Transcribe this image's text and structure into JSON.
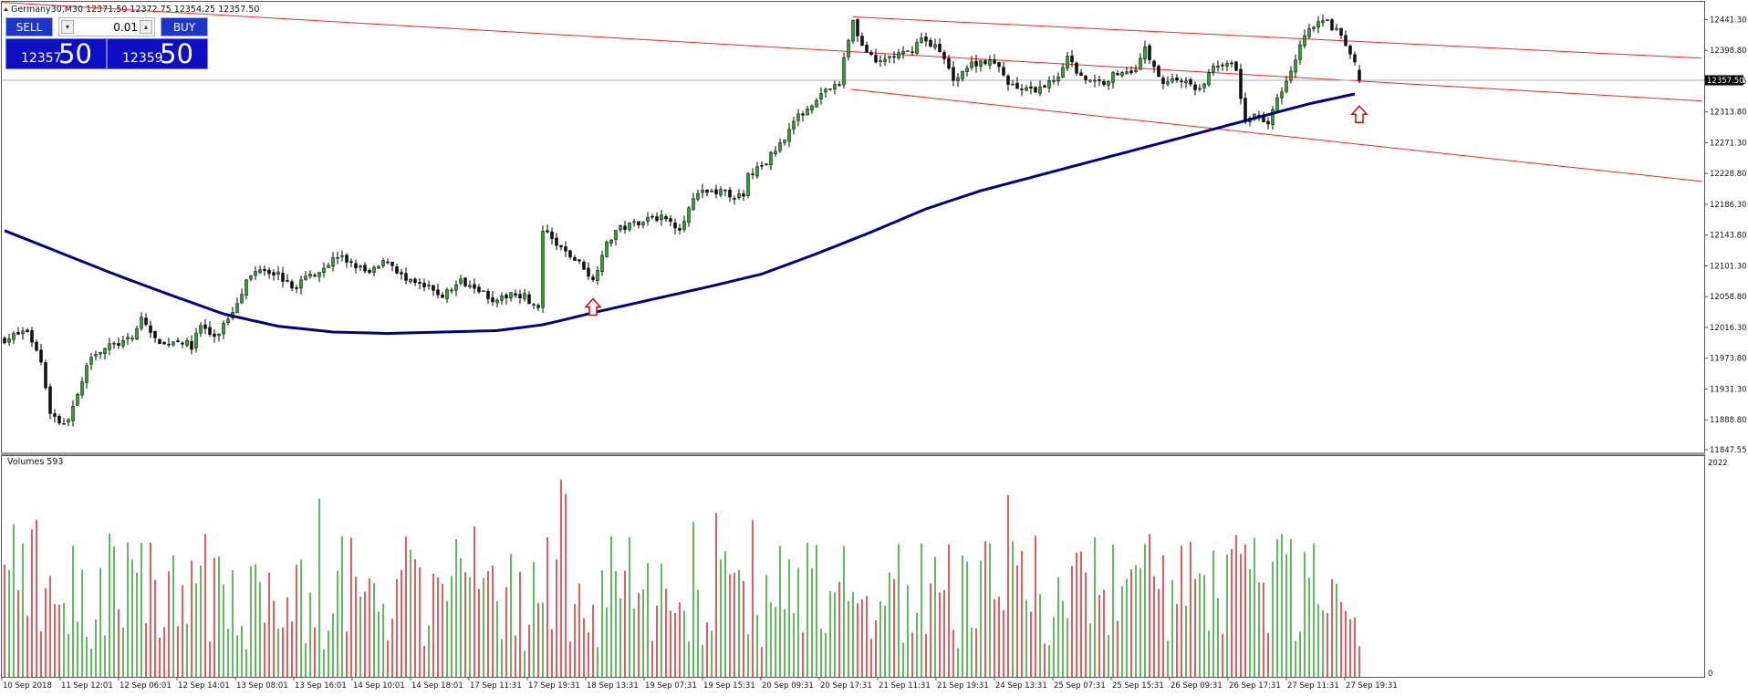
{
  "window": {
    "symbol_line": "Germany30,M30  12371.50 12372.75 12354.25 12357.50"
  },
  "trade_panel": {
    "sell_label": "SELL",
    "buy_label": "BUY",
    "lot_value": "0.01",
    "sell_price_small": "12357",
    "sell_price_big": "50",
    "buy_price_small": "12359",
    "buy_price_big": "50"
  },
  "colors": {
    "bull": "#1a9f1a",
    "bear": "#e01515",
    "channel": "#ff2020",
    "ma": "#000080",
    "current_price_line": "#9fb1c7",
    "frame": "#555555"
  },
  "chart_data": [
    {
      "type": "candlestick",
      "title": "Germany30,M30",
      "ohlc_header": {
        "open": 12371.5,
        "high": 12372.75,
        "low": 12354.25,
        "close": 12357.5
      },
      "current_price": 12357.5,
      "current_price_label": "12357.50",
      "ylim": [
        11847.55,
        12462.0
      ],
      "y_ticks": [
        "12441.30",
        "12398.80",
        "12356.05",
        "12313.80",
        "12271.30",
        "12228.80",
        "12186.30",
        "12143.80",
        "12101.30",
        "12058.80",
        "12016.30",
        "11973.80",
        "11931.30",
        "11888.80",
        "11847.55"
      ],
      "x_ticks": [
        "10 Sep 2018",
        "11 Sep 12:01",
        "12 Sep 06:01",
        "12 Sep 14:01",
        "13 Sep 08:01",
        "13 Sep 16:01",
        "14 Sep 10:01",
        "14 Sep 18:01",
        "17 Sep 11:31",
        "17 Sep 19:31",
        "18 Sep 13:31",
        "19 Sep 07:31",
        "19 Sep 15:31",
        "20 Sep 09:31",
        "20 Sep 17:31",
        "21 Sep 11:31",
        "21 Sep 19:31",
        "24 Sep 13:31",
        "25 Sep 07:31",
        "25 Sep 15:31",
        "26 Sep 09:31",
        "26 Sep 17:31",
        "27 Sep 11:31",
        "27 Sep 19:31"
      ],
      "bar_count": 298,
      "close_path": [
        [
          0,
          12000
        ],
        [
          5,
          12012
        ],
        [
          8,
          11970
        ],
        [
          10,
          11900
        ],
        [
          13,
          11880
        ],
        [
          16,
          11920
        ],
        [
          19,
          11980
        ],
        [
          23,
          11990
        ],
        [
          28,
          12000
        ],
        [
          30,
          12030
        ],
        [
          34,
          11990
        ],
        [
          38,
          12000
        ],
        [
          41,
          11990
        ],
        [
          43,
          12020
        ],
        [
          46,
          12000
        ],
        [
          50,
          12040
        ],
        [
          53,
          12080
        ],
        [
          56,
          12100
        ],
        [
          60,
          12090
        ],
        [
          63,
          12070
        ],
        [
          66,
          12085
        ],
        [
          70,
          12100
        ],
        [
          73,
          12115
        ],
        [
          76,
          12105
        ],
        [
          80,
          12090
        ],
        [
          84,
          12110
        ],
        [
          88,
          12080
        ],
        [
          93,
          12070
        ],
        [
          96,
          12060
        ],
        [
          100,
          12080
        ],
        [
          103,
          12075
        ],
        [
          106,
          12060
        ],
        [
          108,
          12050
        ],
        [
          111,
          12065
        ],
        [
          114,
          12060
        ],
        [
          117,
          12040
        ],
        [
          118,
          12150
        ],
        [
          121,
          12130
        ],
        [
          124,
          12115
        ],
        [
          127,
          12100
        ],
        [
          129,
          12080
        ],
        [
          131,
          12120
        ],
        [
          134,
          12150
        ],
        [
          138,
          12160
        ],
        [
          142,
          12170
        ],
        [
          145,
          12165
        ],
        [
          148,
          12155
        ],
        [
          150,
          12180
        ],
        [
          152,
          12200
        ],
        [
          156,
          12205
        ],
        [
          159,
          12200
        ],
        [
          162,
          12195
        ],
        [
          163,
          12225
        ],
        [
          167,
          12245
        ],
        [
          170,
          12270
        ],
        [
          173,
          12300
        ],
        [
          176,
          12320
        ],
        [
          180,
          12345
        ],
        [
          183,
          12350
        ],
        [
          184,
          12390
        ],
        [
          186,
          12440
        ],
        [
          188,
          12405
        ],
        [
          191,
          12380
        ],
        [
          194,
          12390
        ],
        [
          198,
          12395
        ],
        [
          201,
          12415
        ],
        [
          204,
          12405
        ],
        [
          206,
          12385
        ],
        [
          208,
          12360
        ],
        [
          210,
          12370
        ],
        [
          212,
          12380
        ],
        [
          215,
          12385
        ],
        [
          218,
          12375
        ],
        [
          220,
          12355
        ],
        [
          223,
          12345
        ],
        [
          226,
          12340
        ],
        [
          228,
          12350
        ],
        [
          231,
          12365
        ],
        [
          233,
          12390
        ],
        [
          235,
          12370
        ],
        [
          238,
          12355
        ],
        [
          241,
          12355
        ],
        [
          243,
          12365
        ],
        [
          246,
          12370
        ],
        [
          248,
          12375
        ],
        [
          250,
          12400
        ],
        [
          252,
          12375
        ],
        [
          254,
          12355
        ],
        [
          257,
          12360
        ],
        [
          260,
          12350
        ],
        [
          262,
          12345
        ],
        [
          265,
          12375
        ],
        [
          268,
          12385
        ],
        [
          270,
          12370
        ],
        [
          271,
          12335
        ],
        [
          272,
          12300
        ],
        [
          275,
          12310
        ],
        [
          277,
          12300
        ],
        [
          279,
          12330
        ],
        [
          281,
          12360
        ],
        [
          283,
          12390
        ],
        [
          285,
          12420
        ],
        [
          287,
          12435
        ],
        [
          290,
          12438
        ],
        [
          292,
          12425
        ],
        [
          294,
          12405
        ],
        [
          296,
          12385
        ],
        [
          297,
          12360
        ]
      ],
      "ma_path": [
        [
          0,
          12150
        ],
        [
          12,
          12120
        ],
        [
          24,
          12090
        ],
        [
          36,
          12062
        ],
        [
          48,
          12035
        ],
        [
          60,
          12018
        ],
        [
          72,
          12010
        ],
        [
          84,
          12008
        ],
        [
          96,
          12010
        ],
        [
          108,
          12012
        ],
        [
          118,
          12020
        ],
        [
          130,
          12038
        ],
        [
          142,
          12055
        ],
        [
          154,
          12072
        ],
        [
          166,
          12090
        ],
        [
          178,
          12118
        ],
        [
          190,
          12148
        ],
        [
          202,
          12180
        ],
        [
          214,
          12205
        ],
        [
          226,
          12225
        ],
        [
          238,
          12245
        ],
        [
          250,
          12265
        ],
        [
          262,
          12285
        ],
        [
          274,
          12305
        ],
        [
          286,
          12325
        ],
        [
          297,
          12340
        ]
      ],
      "channel_lines": [
        {
          "from": [
            -0.5,
            12465
          ],
          "to": [
            372.0,
            12329
          ]
        },
        {
          "from": [
            186,
            12445
          ],
          "to": [
            372.0,
            12388
          ]
        },
        {
          "from": [
            185.5,
            12345
          ],
          "to": [
            372.0,
            12218
          ]
        }
      ],
      "markers": [
        {
          "shape": "up-arrow",
          "bar": 129,
          "price": 12056
        },
        {
          "shape": "up-arrow",
          "bar": 297,
          "price": 12322
        }
      ]
    },
    {
      "type": "bar",
      "title": "Volumes 593",
      "ylim": [
        0,
        2022
      ],
      "y_ticks": [
        "2022",
        "0"
      ],
      "volumes_note": "one bar per candle; color follows candle direction"
    }
  ]
}
